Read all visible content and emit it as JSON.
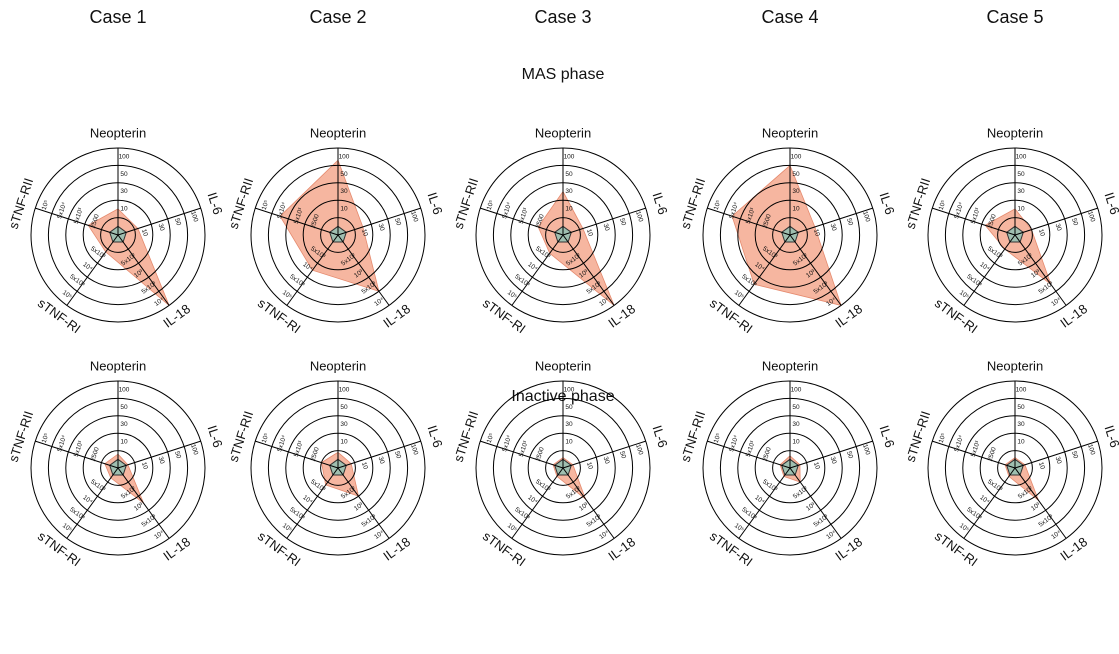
{
  "columns": [
    "Case 1",
    "Case 2",
    "Case 3",
    "Case 4",
    "Case 5"
  ],
  "rows": [
    "MAS phase",
    "Inactive phase"
  ],
  "radar_axes": [
    {
      "label": "Neopterin",
      "ticks": [
        {
          "value": 1,
          "label": "10"
        },
        {
          "value": 2,
          "label": "30"
        },
        {
          "value": 3,
          "label": "50"
        },
        {
          "value": 4,
          "label": "100"
        }
      ]
    },
    {
      "label": "IL-6",
      "ticks": [
        {
          "value": 1,
          "label": "10"
        },
        {
          "value": 2,
          "label": "30"
        },
        {
          "value": 3,
          "label": "50"
        },
        {
          "value": 4,
          "label": "100"
        }
      ]
    },
    {
      "label": "IL-18",
      "ticks": [
        {
          "value": 1,
          "label": "5x10²"
        },
        {
          "value": 2,
          "label": "10³"
        },
        {
          "value": 3,
          "label": "5x10³"
        },
        {
          "value": 4,
          "label": "10⁴"
        }
      ]
    },
    {
      "label": "sTNF-RI",
      "ticks": [
        {
          "value": 1,
          "label": "5x10³"
        },
        {
          "value": 2,
          "label": "10⁴"
        },
        {
          "value": 3,
          "label": "5x10⁴"
        },
        {
          "value": 4,
          "label": "10⁵"
        }
      ]
    },
    {
      "label": "sTNF-RII",
      "ticks": [
        {
          "value": 1,
          "label": "2500"
        },
        {
          "value": 2,
          "label": "5x10³"
        },
        {
          "value": 3,
          "label": "5x10⁴"
        },
        {
          "value": 4,
          "label": "10⁵"
        }
      ]
    }
  ],
  "chart_data": [
    {
      "type": "radar",
      "rlim": [
        0,
        5
      ],
      "series": [
        {
          "color": "#f4a98f",
          "values": [
            1.5,
            1.2,
            5,
            1.2,
            1.8
          ]
        },
        {
          "color": "#9fbfb0",
          "values": [
            0.5,
            0.5,
            0.5,
            0.5,
            0.5
          ]
        }
      ]
    },
    {
      "type": "radar",
      "rlim": [
        0,
        5
      ],
      "series": [
        {
          "color": "#f4a98f",
          "values": [
            4.3,
            1.5,
            4,
            2.5,
            3.5
          ]
        },
        {
          "color": "#9fbfb0",
          "values": [
            0.5,
            0.5,
            0.5,
            0.5,
            0.5
          ]
        }
      ]
    },
    {
      "type": "radar",
      "rlim": [
        0,
        5
      ],
      "series": [
        {
          "color": "#f4a98f",
          "values": [
            2.5,
            1.2,
            5,
            1.3,
            1.5
          ]
        },
        {
          "color": "#9fbfb0",
          "values": [
            0.5,
            0.5,
            0.5,
            0.5,
            0.5
          ]
        }
      ]
    },
    {
      "type": "radar",
      "rlim": [
        0,
        5
      ],
      "series": [
        {
          "color": "#f4a98f",
          "values": [
            4,
            1.5,
            5,
            3.5,
            3.5
          ]
        },
        {
          "color": "#9fbfb0",
          "values": [
            0.5,
            0.5,
            0.5,
            0.5,
            0.5
          ]
        }
      ]
    },
    {
      "type": "radar",
      "rlim": [
        0,
        5
      ],
      "series": [
        {
          "color": "#f4a98f",
          "values": [
            1.5,
            1,
            3.5,
            1,
            1.8
          ]
        },
        {
          "color": "#9fbfb0",
          "values": [
            0.5,
            0.5,
            0.5,
            0.5,
            0.5
          ]
        }
      ]
    },
    {
      "type": "radar",
      "rlim": [
        0,
        5
      ],
      "series": [
        {
          "color": "#f4a98f",
          "values": [
            0.8,
            0.6,
            2.5,
            0.7,
            0.8
          ]
        },
        {
          "color": "#9fbfb0",
          "values": [
            0.5,
            0.5,
            0.5,
            0.5,
            0.5
          ]
        }
      ]
    },
    {
      "type": "radar",
      "rlim": [
        0,
        5
      ],
      "series": [
        {
          "color": "#f4a98f",
          "values": [
            0.9,
            0.8,
            2,
            1.2,
            1
          ]
        },
        {
          "color": "#9fbfb0",
          "values": [
            0.5,
            0.5,
            0.5,
            0.5,
            0.5
          ]
        }
      ]
    },
    {
      "type": "radar",
      "rlim": [
        0,
        5
      ],
      "series": [
        {
          "color": "#f4a98f",
          "values": [
            0.6,
            0.6,
            2.2,
            0.6,
            0.6
          ]
        },
        {
          "color": "#9fbfb0",
          "values": [
            0.5,
            0.5,
            0.5,
            0.5,
            0.5
          ]
        }
      ]
    },
    {
      "type": "radar",
      "rlim": [
        0,
        5
      ],
      "series": [
        {
          "color": "#f4a98f",
          "values": [
            0.7,
            0.6,
            1,
            0.6,
            0.6
          ]
        },
        {
          "color": "#9fbfb0",
          "values": [
            0.5,
            0.5,
            0.5,
            0.5,
            0.5
          ]
        }
      ]
    },
    {
      "type": "radar",
      "rlim": [
        0,
        5
      ],
      "series": [
        {
          "color": "#f4a98f",
          "values": [
            0.6,
            0.6,
            2.3,
            0.6,
            0.6
          ]
        },
        {
          "color": "#9fbfb0",
          "values": [
            0.5,
            0.5,
            0.5,
            0.5,
            0.5
          ]
        }
      ]
    }
  ]
}
